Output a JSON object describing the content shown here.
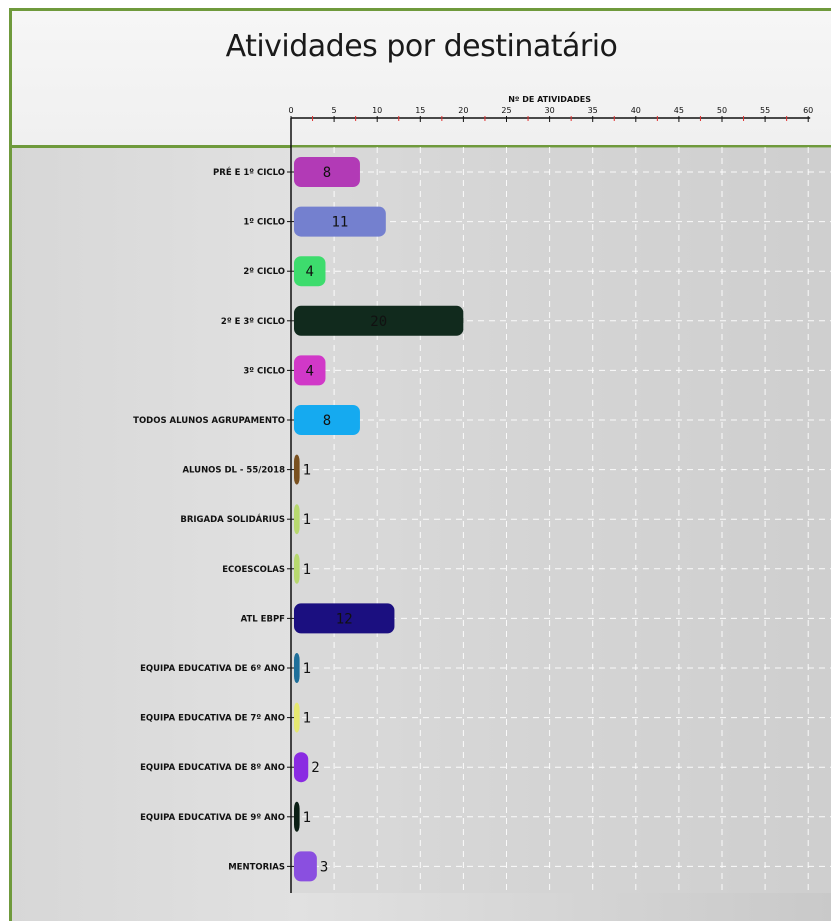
{
  "chart_data": {
    "type": "bar",
    "orientation": "horizontal",
    "title": "Atividades por destinatário",
    "xlabel": "Nº DE ATIVIDADES",
    "ylabel": "",
    "xlim": [
      0,
      60
    ],
    "x_ticks": [
      0,
      5,
      10,
      15,
      20,
      25,
      30,
      35,
      40,
      45,
      50,
      55,
      60
    ],
    "x_axis_position": "top",
    "grid": true,
    "categories": [
      "PRÉ E 1º CICLO",
      "1º CICLO",
      "2º CICLO",
      "2º E 3º CICLO",
      "3º CICLO",
      "TODOS ALUNOS AGRUPAMENTO",
      "ALUNOS DL - 55/2018",
      "BRIGADA SOLIDÁRIUS",
      "ECOESCOLAS",
      "ATL EBPF",
      "EQUIPA EDUCATIVA DE 6º ANO",
      "EQUIPA EDUCATIVA DE 7º ANO",
      "EQUIPA EDUCATIVA DE 8º ANO",
      "EQUIPA EDUCATIVA DE 9º ANO",
      "MENTORIAS"
    ],
    "values": [
      8,
      11,
      4,
      20,
      4,
      8,
      1,
      1,
      1,
      12,
      1,
      1,
      2,
      1,
      3
    ],
    "colors": [
      "#b23ab6",
      "#7480cf",
      "#3ddc6d",
      "#112a1d",
      "#d138c8",
      "#15aaf0",
      "#7a5120",
      "#b7d86e",
      "#b7d86e",
      "#1b0f80",
      "#1f6f9a",
      "#e6e870",
      "#8a2be2",
      "#0b1f14",
      "#8a4fe0"
    ]
  }
}
